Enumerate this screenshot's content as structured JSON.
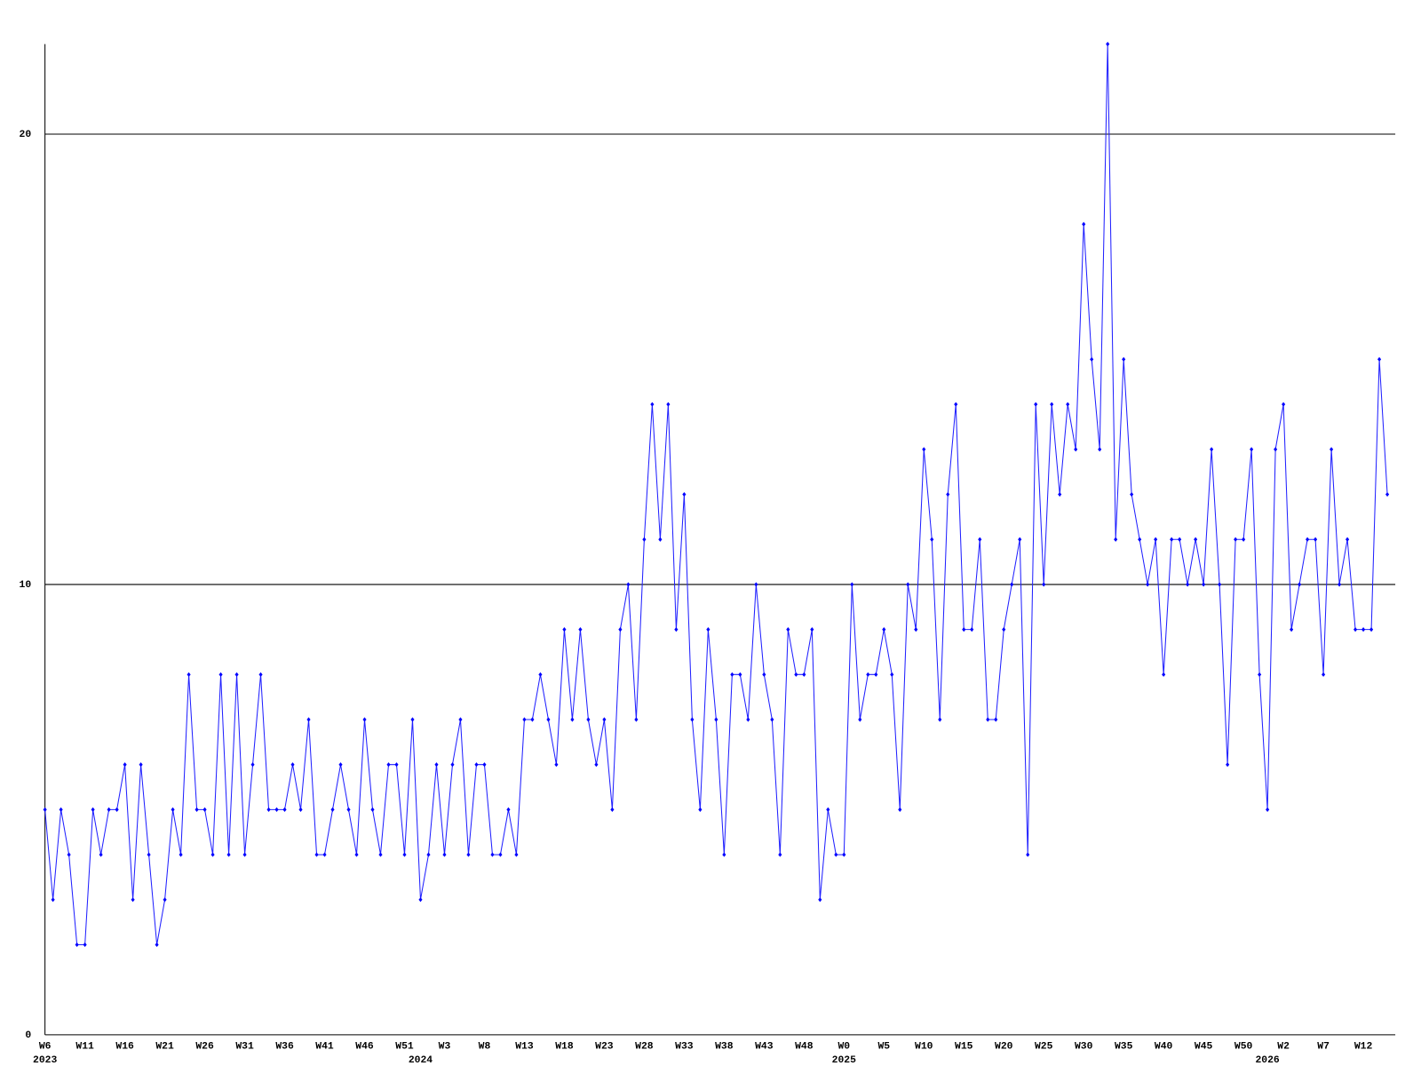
{
  "chart_data": {
    "type": "line",
    "color": "#2020ff",
    "categories": [
      "W6",
      null,
      null,
      null,
      null,
      "W11",
      null,
      null,
      null,
      null,
      "W16",
      null,
      null,
      null,
      null,
      "W21",
      null,
      null,
      null,
      null,
      "W26",
      null,
      null,
      null,
      null,
      "W31",
      null,
      null,
      null,
      null,
      "W36",
      null,
      null,
      null,
      null,
      "W41",
      null,
      null,
      null,
      null,
      "W46",
      null,
      null,
      null,
      null,
      "W51",
      null,
      null,
      null,
      null,
      "W3",
      null,
      null,
      null,
      null,
      "W8",
      null,
      null,
      null,
      null,
      "W13",
      null,
      null,
      null,
      null,
      "W18",
      null,
      null,
      null,
      null,
      "W23",
      null,
      null,
      null,
      null,
      "W28",
      null,
      null,
      null,
      null,
      "W33",
      null,
      null,
      null,
      null,
      "W38",
      null,
      null,
      null,
      null,
      "W43",
      null,
      null,
      null,
      null,
      "W48",
      null,
      null,
      null,
      null,
      "W0",
      null,
      null,
      null,
      null,
      "W5",
      null,
      null,
      null,
      null,
      "W10",
      null,
      null,
      null,
      null,
      "W15",
      null,
      null,
      null,
      null,
      "W20",
      null,
      null,
      null,
      null,
      "W25",
      null,
      null,
      null,
      null,
      "W30",
      null,
      null,
      null,
      null,
      "W35",
      null,
      null,
      null,
      null,
      "W40",
      null,
      null,
      null,
      null,
      "W45",
      null,
      null,
      null,
      null,
      "W50",
      null,
      null,
      null,
      null,
      "W2",
      null,
      null,
      null,
      null,
      "W7",
      null,
      null,
      null,
      null,
      "W12",
      null,
      null,
      null
    ],
    "year_ticks": [
      {
        "value": 0,
        "label": "2023"
      },
      {
        "value": 47,
        "label": "2024"
      },
      {
        "value": 100,
        "label": "2025"
      },
      {
        "value": 153,
        "label": "2026"
      }
    ],
    "values": [
      5,
      3,
      5,
      4,
      2,
      2,
      5,
      4,
      5,
      5,
      6,
      3,
      6,
      4,
      2,
      3,
      5,
      4,
      8,
      5,
      5,
      4,
      8,
      4,
      8,
      4,
      6,
      8,
      5,
      5,
      5,
      6,
      5,
      7,
      4,
      4,
      5,
      6,
      5,
      4,
      7,
      5,
      4,
      6,
      6,
      4,
      7,
      3,
      4,
      6,
      4,
      6,
      7,
      4,
      6,
      6,
      4,
      4,
      5,
      4,
      7,
      7,
      8,
      7,
      6,
      9,
      7,
      9,
      7,
      6,
      7,
      5,
      9,
      10,
      7,
      11,
      14,
      11,
      14,
      9,
      12,
      7,
      5,
      9,
      7,
      4,
      8,
      8,
      7,
      10,
      8,
      7,
      4,
      9,
      8,
      8,
      9,
      3,
      5,
      4,
      4,
      10,
      7,
      8,
      8,
      9,
      8,
      5,
      10,
      9,
      13,
      11,
      7,
      12,
      14,
      9,
      9,
      11,
      7,
      7,
      9,
      10,
      11,
      4,
      14,
      10,
      14,
      12,
      14,
      13,
      18,
      15,
      13,
      22,
      11,
      15,
      12,
      11,
      10,
      11,
      8,
      11,
      11,
      10,
      11,
      10,
      13,
      10,
      6,
      11,
      11,
      13,
      8,
      5,
      13,
      14,
      9,
      10,
      11,
      11,
      8,
      13,
      10,
      11,
      9,
      9,
      9,
      15,
      12
    ],
    "ylim": [
      0,
      22
    ],
    "yticks": [
      0,
      10,
      20
    ],
    "grid": true
  }
}
